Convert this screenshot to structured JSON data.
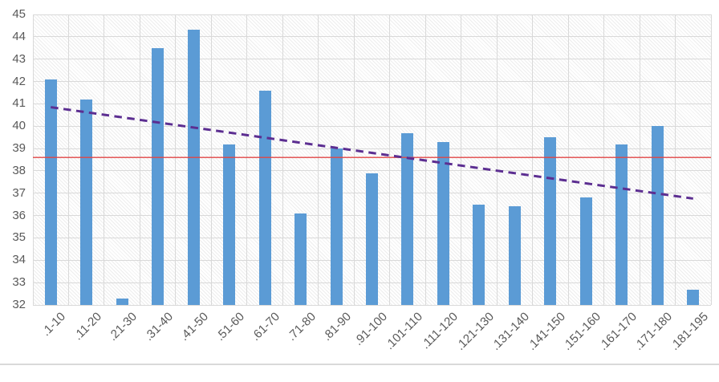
{
  "chart_data": {
    "type": "bar",
    "title": "",
    "categories": [
      ".1-10",
      ".11-20",
      ".21-30",
      ".31-40",
      ".41-50",
      ".51-60",
      ".61-70",
      ".71-80",
      ".81-90",
      ".91-100",
      ".101-110",
      ".111-120",
      ".121-130",
      ".131-140",
      ".141-150",
      ".151-160",
      ".161-170",
      ".171-180",
      ".181-195"
    ],
    "values": [
      42.1,
      41.2,
      32.3,
      43.5,
      44.3,
      39.2,
      41.6,
      36.1,
      39.0,
      37.9,
      39.7,
      39.3,
      36.5,
      36.4,
      39.5,
      36.8,
      39.2,
      40.0,
      32.7
    ],
    "xlabel": "",
    "ylabel": "",
    "ylim": [
      32,
      45
    ],
    "ytick_step": 1,
    "grid": "horizontal-and-vertical",
    "plot_background": "light-diagonal-hatch",
    "legend": "none",
    "reference_line": {
      "value": 38.6,
      "style": "solid"
    },
    "trendline": {
      "type": "linear",
      "start_value": 40.85,
      "end_value": 36.76,
      "style": "dashed"
    }
  },
  "colors": {
    "bar": "#5b9bd5",
    "reference_line": "#e04545",
    "trendline": "#5c2e91",
    "gridline": "#d9d9d9",
    "axis_text": "#595959",
    "frame_border": "#d9d9d9",
    "background": "#ffffff"
  }
}
